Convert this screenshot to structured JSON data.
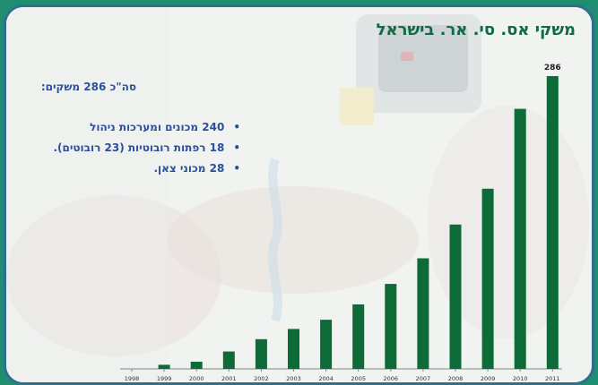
{
  "slide": {
    "title": "משקי אס. סי. אר. בישראל",
    "summary": "סה\"כ 286 משקים:",
    "bullets": [
      "240 מכונים ומערכות ניהול",
      "18 רפתות רובוטיות (23 רובוטים).",
      "28 מכוני צאן."
    ],
    "bullet_glyph": "•"
  },
  "colors": {
    "bar": "#0c6b37",
    "title": "#0e6b43",
    "text": "#2b4f9a",
    "frame": "#2e6f8f",
    "outer": "#1f8d6f"
  },
  "chart_data": {
    "type": "bar",
    "categories": [
      "1998",
      "1999",
      "2000",
      "2001",
      "2002",
      "2003",
      "2004",
      "2005",
      "2006",
      "2007",
      "2008",
      "2009",
      "2010",
      "2011"
    ],
    "values": [
      0,
      4,
      7,
      17,
      29,
      39,
      48,
      63,
      83,
      108,
      141,
      176,
      254,
      286
    ],
    "data_labels": [
      {
        "category": "2011",
        "text": "286"
      }
    ],
    "ylim": [
      0,
      286
    ],
    "xlabel": "",
    "ylabel": "",
    "grid": false,
    "legend": "none"
  }
}
